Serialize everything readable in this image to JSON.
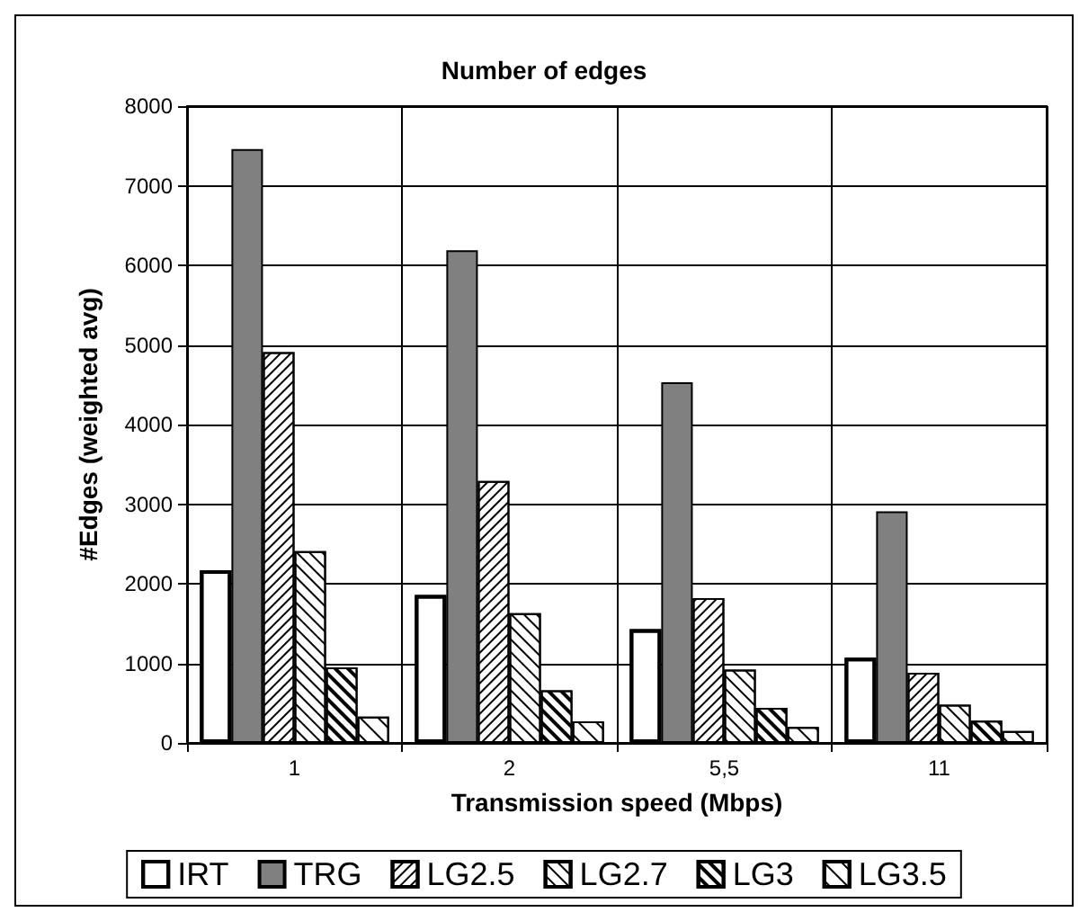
{
  "chart_data": {
    "type": "bar",
    "title": "Number of edges",
    "xlabel": "Transmission speed (Mbps)",
    "ylabel": "#Edges (weighted avg)",
    "categories": [
      "1",
      "2",
      "5,5",
      "11"
    ],
    "series": [
      {
        "name": "IRT",
        "color": "#ffffff",
        "values": [
          2170,
          1860,
          1430,
          1070
        ]
      },
      {
        "name": "TRG",
        "color": "#808080",
        "values": [
          7460,
          6190,
          4530,
          2910
        ]
      },
      {
        "name": "LG2.5",
        "color": "#ffffff",
        "values": [
          4910,
          3290,
          1820,
          880
        ]
      },
      {
        "name": "LG2.7",
        "color": "#ffffff",
        "values": [
          2410,
          1630,
          920,
          480
        ]
      },
      {
        "name": "LG3",
        "color": "#ffffff",
        "values": [
          950,
          660,
          440,
          280
        ]
      },
      {
        "name": "LG3.5",
        "color": "#ffffff",
        "values": [
          330,
          270,
          200,
          150
        ]
      }
    ],
    "ylim": [
      0,
      8000
    ],
    "yticks": [
      0,
      1000,
      2000,
      3000,
      4000,
      5000,
      6000,
      7000,
      8000
    ],
    "grid": true,
    "legend": "bottom"
  }
}
